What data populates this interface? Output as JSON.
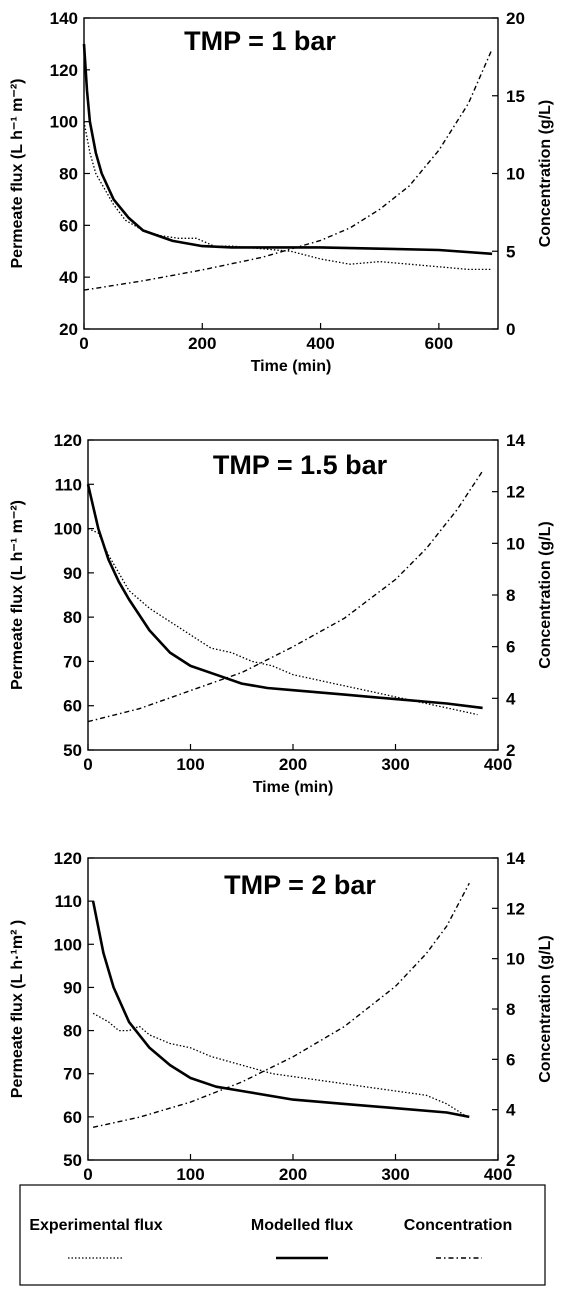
{
  "chart_data": [
    {
      "type": "line",
      "title": "TMP = 1 bar",
      "xlabel": "Time (min)",
      "ylabel": "Permeate flux (L h⁻¹ m⁻²)",
      "y2label": "Concentration (g/L)",
      "xlim": [
        0,
        700
      ],
      "ylim": [
        20,
        140
      ],
      "y2lim": [
        0,
        20
      ],
      "xticks": [
        "0",
        "200",
        "400",
        "600"
      ],
      "yticks": [
        "20",
        "40",
        "60",
        "80",
        "100",
        "120",
        "140"
      ],
      "y2ticks": [
        "0",
        "5",
        "10",
        "15",
        "20"
      ],
      "series": [
        {
          "name": "Experimental flux",
          "axis": "left",
          "x": [
            0,
            10,
            20,
            30,
            50,
            70,
            100,
            130,
            160,
            190,
            220,
            250,
            300,
            350,
            400,
            450,
            500,
            550,
            600,
            650,
            690
          ],
          "y": [
            100,
            88,
            80,
            76,
            68,
            62,
            58,
            56,
            55,
            55,
            52,
            52,
            51,
            50,
            47,
            45,
            46,
            45,
            44,
            43,
            43
          ]
        },
        {
          "name": "Modelled flux",
          "axis": "left",
          "x": [
            0,
            5,
            10,
            20,
            30,
            50,
            75,
            100,
            150,
            200,
            250,
            300,
            400,
            500,
            600,
            690
          ],
          "y": [
            130,
            112,
            100,
            88,
            80,
            70,
            63,
            58,
            54,
            52,
            51.5,
            51.5,
            51.5,
            51,
            50.5,
            49
          ]
        },
        {
          "name": "Concentration",
          "axis": "right",
          "x": [
            0,
            100,
            200,
            300,
            400,
            450,
            500,
            550,
            600,
            650,
            690
          ],
          "y": [
            2.5,
            3.1,
            3.8,
            4.6,
            5.7,
            6.5,
            7.7,
            9.2,
            11.5,
            14.5,
            18
          ]
        }
      ]
    },
    {
      "type": "line",
      "title": "TMP = 1.5 bar",
      "xlabel": "Time (min)",
      "ylabel": "Permeate flux (L h⁻¹ m⁻²)",
      "y2label": "Concentration (g/L)",
      "xlim": [
        0,
        400
      ],
      "ylim": [
        50,
        120
      ],
      "y2lim": [
        2,
        14
      ],
      "xticks": [
        "0",
        "100",
        "200",
        "300",
        "400"
      ],
      "yticks": [
        "50",
        "60",
        "70",
        "80",
        "90",
        "100",
        "110",
        "120"
      ],
      "y2ticks": [
        "2",
        "4",
        "6",
        "8",
        "10",
        "12",
        "14"
      ],
      "series": [
        {
          "name": "Experimental flux",
          "axis": "left",
          "x": [
            0,
            10,
            20,
            30,
            40,
            60,
            80,
            100,
            120,
            140,
            160,
            180,
            200,
            220,
            240,
            260,
            280,
            300,
            320,
            340,
            360,
            380
          ],
          "y": [
            100,
            99,
            94,
            90,
            86,
            82,
            79,
            76,
            73,
            72,
            70,
            69,
            67,
            66,
            65,
            64,
            63,
            62,
            61,
            60,
            59,
            58
          ]
        },
        {
          "name": "Modelled flux",
          "axis": "left",
          "x": [
            0,
            10,
            20,
            30,
            40,
            60,
            80,
            100,
            125,
            150,
            175,
            200,
            250,
            300,
            350,
            385
          ],
          "y": [
            110,
            100,
            93,
            88,
            84,
            77,
            72,
            69,
            67,
            65,
            64,
            63.5,
            62.5,
            61.5,
            60.5,
            59.5
          ]
        },
        {
          "name": "Concentration",
          "axis": "right",
          "x": [
            0,
            50,
            100,
            150,
            200,
            250,
            300,
            330,
            360,
            385
          ],
          "y": [
            3.1,
            3.6,
            4.3,
            5.0,
            6.0,
            7.1,
            8.6,
            9.8,
            11.3,
            12.8
          ]
        }
      ]
    },
    {
      "type": "line",
      "title": "TMP = 2 bar",
      "xlabel": "Time (min)",
      "ylabel": "Permeate flux (L h·¹m²  )",
      "y2label": "Concentration (g/L)",
      "xlim": [
        0,
        400
      ],
      "ylim": [
        50,
        120
      ],
      "y2lim": [
        2,
        14
      ],
      "xticks": [
        "0",
        "100",
        "200",
        "300",
        "400"
      ],
      "yticks": [
        "50",
        "60",
        "70",
        "80",
        "90",
        "100",
        "110",
        "120"
      ],
      "y2ticks": [
        "2",
        "4",
        "6",
        "8",
        "10",
        "12",
        "14"
      ],
      "series": [
        {
          "name": "Experimental flux",
          "axis": "left",
          "x": [
            5,
            20,
            30,
            40,
            50,
            60,
            80,
            100,
            120,
            150,
            180,
            210,
            240,
            270,
            300,
            330,
            350,
            370
          ],
          "y": [
            84,
            82,
            80,
            80,
            81,
            79,
            77,
            76,
            74,
            72,
            70,
            69,
            68,
            67,
            66,
            65,
            63,
            60
          ]
        },
        {
          "name": "Modelled flux",
          "axis": "left",
          "x": [
            5,
            15,
            25,
            40,
            60,
            80,
            100,
            125,
            150,
            200,
            250,
            300,
            350,
            372
          ],
          "y": [
            110,
            98,
            90,
            82,
            76,
            72,
            69,
            67,
            66,
            64,
            63,
            62,
            61,
            60
          ]
        },
        {
          "name": "Concentration",
          "axis": "right",
          "x": [
            5,
            50,
            100,
            150,
            200,
            250,
            300,
            330,
            350,
            372
          ],
          "y": [
            3.3,
            3.7,
            4.3,
            5.1,
            6.1,
            7.3,
            8.9,
            10.2,
            11.3,
            13
          ]
        }
      ]
    }
  ],
  "legend": {
    "items": [
      {
        "label": "Experimental flux",
        "style": "dotted"
      },
      {
        "label": "Modelled flux",
        "style": "solid"
      },
      {
        "label": "Concentration",
        "style": "dash-dot"
      }
    ]
  },
  "colors": {
    "ink": "#000000",
    "background": "#ffffff"
  }
}
